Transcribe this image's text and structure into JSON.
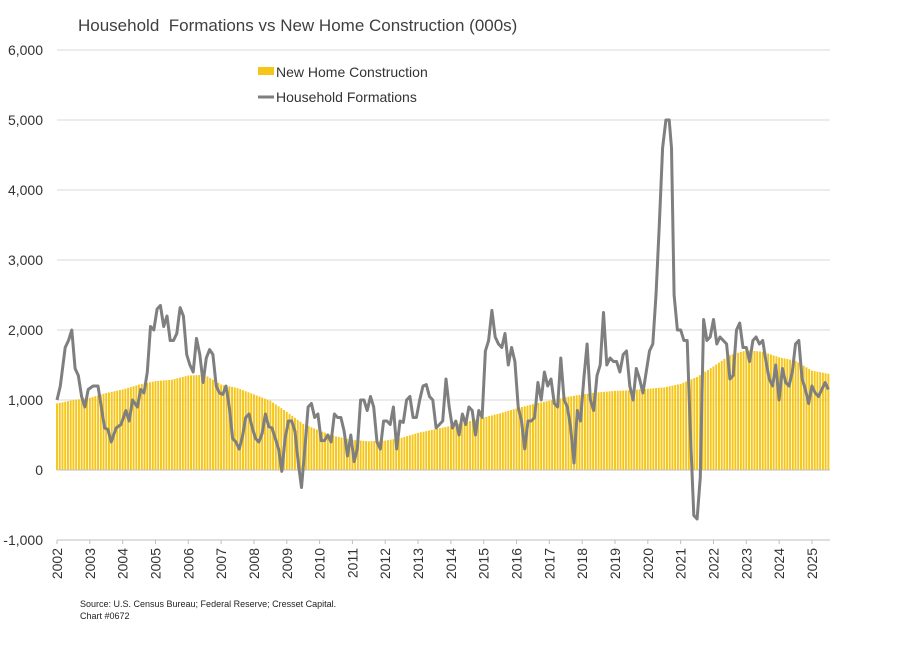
{
  "chart_data": {
    "type": "bar+line",
    "title": "Household  Formations vs New Home Construction (000s)",
    "ylim": [
      -1000,
      6000
    ],
    "y_ticks": [
      "-1,000",
      "0",
      "1,000",
      "2,000",
      "3,000",
      "4,000",
      "5,000",
      "6,000"
    ],
    "y_tick_values": [
      -1000,
      0,
      1000,
      2000,
      3000,
      4000,
      5000,
      6000
    ],
    "x_ticks": [
      "2002",
      "2003",
      "2004",
      "2005",
      "2006",
      "2007",
      "2008",
      "2009",
      "2010",
      "2011",
      "2012",
      "2013",
      "2014",
      "2015",
      "2016",
      "2017",
      "2018",
      "2019",
      "2020",
      "2021",
      "2022",
      "2023",
      "2024",
      "2025"
    ],
    "x_range": [
      2002.0,
      2025.55
    ],
    "grid": "horizontal",
    "legend_position": "top-left",
    "series": [
      {
        "name": "New Home Construction",
        "type": "bar",
        "color": "#F5C518",
        "points": [
          [
            2002.0,
            950
          ],
          [
            2002.5,
            1000
          ],
          [
            2003.0,
            1030
          ],
          [
            2003.5,
            1100
          ],
          [
            2004.0,
            1150
          ],
          [
            2004.5,
            1220
          ],
          [
            2005.0,
            1270
          ],
          [
            2005.5,
            1290
          ],
          [
            2006.0,
            1350
          ],
          [
            2006.5,
            1360
          ],
          [
            2007.0,
            1220
          ],
          [
            2007.5,
            1170
          ],
          [
            2008.0,
            1080
          ],
          [
            2008.5,
            990
          ],
          [
            2009.0,
            830
          ],
          [
            2009.5,
            660
          ],
          [
            2010.0,
            560
          ],
          [
            2010.5,
            480
          ],
          [
            2011.0,
            430
          ],
          [
            2011.5,
            410
          ],
          [
            2012.0,
            420
          ],
          [
            2012.5,
            460
          ],
          [
            2013.0,
            530
          ],
          [
            2013.5,
            580
          ],
          [
            2014.0,
            630
          ],
          [
            2014.5,
            690
          ],
          [
            2015.0,
            750
          ],
          [
            2015.5,
            810
          ],
          [
            2016.0,
            880
          ],
          [
            2016.5,
            940
          ],
          [
            2017.0,
            990
          ],
          [
            2017.5,
            1040
          ],
          [
            2018.0,
            1080
          ],
          [
            2018.5,
            1110
          ],
          [
            2019.0,
            1130
          ],
          [
            2019.5,
            1140
          ],
          [
            2020.0,
            1160
          ],
          [
            2020.5,
            1180
          ],
          [
            2021.0,
            1230
          ],
          [
            2021.5,
            1330
          ],
          [
            2022.0,
            1480
          ],
          [
            2022.5,
            1640
          ],
          [
            2023.0,
            1710
          ],
          [
            2023.5,
            1690
          ],
          [
            2024.0,
            1610
          ],
          [
            2024.5,
            1560
          ],
          [
            2025.0,
            1420
          ],
          [
            2025.55,
            1370
          ]
        ]
      },
      {
        "name": "Household Formations",
        "type": "line",
        "color": "#7F7F7F",
        "points": [
          [
            2002.0,
            1000
          ],
          [
            2002.1,
            1200
          ],
          [
            2002.25,
            1750
          ],
          [
            2002.35,
            1850
          ],
          [
            2002.45,
            2000
          ],
          [
            2002.55,
            1450
          ],
          [
            2002.65,
            1350
          ],
          [
            2002.75,
            1050
          ],
          [
            2002.85,
            900
          ],
          [
            2002.95,
            1150
          ],
          [
            2003.1,
            1200
          ],
          [
            2003.25,
            1200
          ],
          [
            2003.35,
            900
          ],
          [
            2003.45,
            600
          ],
          [
            2003.55,
            580
          ],
          [
            2003.65,
            400
          ],
          [
            2003.8,
            600
          ],
          [
            2003.95,
            650
          ],
          [
            2004.1,
            850
          ],
          [
            2004.2,
            700
          ],
          [
            2004.3,
            1000
          ],
          [
            2004.45,
            900
          ],
          [
            2004.55,
            1150
          ],
          [
            2004.65,
            1100
          ],
          [
            2004.75,
            1400
          ],
          [
            2004.85,
            2050
          ],
          [
            2004.95,
            2000
          ],
          [
            2005.05,
            2300
          ],
          [
            2005.15,
            2350
          ],
          [
            2005.25,
            2050
          ],
          [
            2005.35,
            2200
          ],
          [
            2005.45,
            1850
          ],
          [
            2005.55,
            1850
          ],
          [
            2005.65,
            1950
          ],
          [
            2005.75,
            2320
          ],
          [
            2005.85,
            2200
          ],
          [
            2005.95,
            1650
          ],
          [
            2006.05,
            1500
          ],
          [
            2006.15,
            1400
          ],
          [
            2006.25,
            1880
          ],
          [
            2006.35,
            1650
          ],
          [
            2006.45,
            1250
          ],
          [
            2006.55,
            1600
          ],
          [
            2006.65,
            1720
          ],
          [
            2006.75,
            1650
          ],
          [
            2006.85,
            1200
          ],
          [
            2006.95,
            1100
          ],
          [
            2007.05,
            1080
          ],
          [
            2007.15,
            1200
          ],
          [
            2007.25,
            900
          ],
          [
            2007.35,
            450
          ],
          [
            2007.45,
            400
          ],
          [
            2007.55,
            300
          ],
          [
            2007.65,
            480
          ],
          [
            2007.75,
            750
          ],
          [
            2007.85,
            800
          ],
          [
            2007.95,
            600
          ],
          [
            2008.05,
            450
          ],
          [
            2008.15,
            400
          ],
          [
            2008.25,
            520
          ],
          [
            2008.35,
            800
          ],
          [
            2008.45,
            620
          ],
          [
            2008.55,
            600
          ],
          [
            2008.65,
            450
          ],
          [
            2008.75,
            300
          ],
          [
            2008.85,
            -20
          ],
          [
            2008.95,
            450
          ],
          [
            2009.05,
            700
          ],
          [
            2009.15,
            700
          ],
          [
            2009.25,
            550
          ],
          [
            2009.35,
            100
          ],
          [
            2009.45,
            -250
          ],
          [
            2009.55,
            300
          ],
          [
            2009.65,
            900
          ],
          [
            2009.75,
            950
          ],
          [
            2009.85,
            750
          ],
          [
            2009.95,
            800
          ],
          [
            2010.05,
            420
          ],
          [
            2010.15,
            420
          ],
          [
            2010.25,
            500
          ],
          [
            2010.35,
            400
          ],
          [
            2010.45,
            800
          ],
          [
            2010.55,
            750
          ],
          [
            2010.65,
            750
          ],
          [
            2010.75,
            550
          ],
          [
            2010.85,
            200
          ],
          [
            2010.95,
            500
          ],
          [
            2011.05,
            120
          ],
          [
            2011.15,
            300
          ],
          [
            2011.25,
            1000
          ],
          [
            2011.35,
            1000
          ],
          [
            2011.45,
            850
          ],
          [
            2011.55,
            1050
          ],
          [
            2011.65,
            900
          ],
          [
            2011.75,
            400
          ],
          [
            2011.85,
            300
          ],
          [
            2011.95,
            700
          ],
          [
            2012.05,
            700
          ],
          [
            2012.15,
            650
          ],
          [
            2012.25,
            900
          ],
          [
            2012.35,
            300
          ],
          [
            2012.45,
            700
          ],
          [
            2012.55,
            680
          ],
          [
            2012.65,
            1000
          ],
          [
            2012.75,
            1050
          ],
          [
            2012.85,
            750
          ],
          [
            2012.95,
            750
          ],
          [
            2013.05,
            1000
          ],
          [
            2013.15,
            1200
          ],
          [
            2013.25,
            1220
          ],
          [
            2013.35,
            1050
          ],
          [
            2013.45,
            1000
          ],
          [
            2013.55,
            600
          ],
          [
            2013.65,
            650
          ],
          [
            2013.75,
            700
          ],
          [
            2013.85,
            1300
          ],
          [
            2013.95,
            900
          ],
          [
            2014.05,
            600
          ],
          [
            2014.15,
            700
          ],
          [
            2014.25,
            500
          ],
          [
            2014.35,
            800
          ],
          [
            2014.45,
            650
          ],
          [
            2014.55,
            900
          ],
          [
            2014.65,
            850
          ],
          [
            2014.75,
            500
          ],
          [
            2014.85,
            850
          ],
          [
            2014.95,
            750
          ],
          [
            2015.05,
            1700
          ],
          [
            2015.15,
            1850
          ],
          [
            2015.25,
            2280
          ],
          [
            2015.35,
            1900
          ],
          [
            2015.45,
            1800
          ],
          [
            2015.55,
            1750
          ],
          [
            2015.65,
            1950
          ],
          [
            2015.75,
            1500
          ],
          [
            2015.85,
            1750
          ],
          [
            2015.95,
            1550
          ],
          [
            2016.05,
            900
          ],
          [
            2016.15,
            700
          ],
          [
            2016.25,
            300
          ],
          [
            2016.35,
            700
          ],
          [
            2016.45,
            700
          ],
          [
            2016.55,
            750
          ],
          [
            2016.65,
            1250
          ],
          [
            2016.75,
            1000
          ],
          [
            2016.85,
            1400
          ],
          [
            2016.95,
            1200
          ],
          [
            2017.05,
            1300
          ],
          [
            2017.15,
            950
          ],
          [
            2017.25,
            900
          ],
          [
            2017.35,
            1600
          ],
          [
            2017.45,
            1000
          ],
          [
            2017.55,
            900
          ],
          [
            2017.65,
            600
          ],
          [
            2017.75,
            100
          ],
          [
            2017.85,
            850
          ],
          [
            2017.95,
            700
          ],
          [
            2018.05,
            1300
          ],
          [
            2018.15,
            1800
          ],
          [
            2018.25,
            1000
          ],
          [
            2018.35,
            850
          ],
          [
            2018.45,
            1350
          ],
          [
            2018.55,
            1500
          ],
          [
            2018.65,
            2250
          ],
          [
            2018.75,
            1500
          ],
          [
            2018.85,
            1600
          ],
          [
            2018.95,
            1550
          ],
          [
            2019.05,
            1550
          ],
          [
            2019.15,
            1400
          ],
          [
            2019.25,
            1650
          ],
          [
            2019.35,
            1700
          ],
          [
            2019.45,
            1200
          ],
          [
            2019.55,
            1000
          ],
          [
            2019.65,
            1450
          ],
          [
            2019.75,
            1300
          ],
          [
            2019.85,
            1100
          ],
          [
            2019.95,
            1400
          ],
          [
            2020.05,
            1700
          ],
          [
            2020.15,
            1800
          ],
          [
            2020.25,
            2500
          ],
          [
            2020.35,
            3500
          ],
          [
            2020.45,
            4600
          ],
          [
            2020.55,
            5000
          ],
          [
            2020.65,
            5000
          ],
          [
            2020.72,
            4600
          ],
          [
            2020.8,
            2500
          ],
          [
            2020.9,
            2000
          ],
          [
            2021.0,
            2000
          ],
          [
            2021.1,
            1850
          ],
          [
            2021.2,
            1850
          ],
          [
            2021.3,
            500
          ],
          [
            2021.4,
            -650
          ],
          [
            2021.5,
            -700
          ],
          [
            2021.6,
            -100
          ],
          [
            2021.7,
            2150
          ],
          [
            2021.8,
            1850
          ],
          [
            2021.9,
            1900
          ],
          [
            2022.0,
            2150
          ],
          [
            2022.1,
            1800
          ],
          [
            2022.2,
            1900
          ],
          [
            2022.3,
            1850
          ],
          [
            2022.4,
            1800
          ],
          [
            2022.5,
            1300
          ],
          [
            2022.6,
            1350
          ],
          [
            2022.7,
            2000
          ],
          [
            2022.8,
            2100
          ],
          [
            2022.9,
            1750
          ],
          [
            2023.0,
            1750
          ],
          [
            2023.1,
            1550
          ],
          [
            2023.2,
            1850
          ],
          [
            2023.3,
            1900
          ],
          [
            2023.4,
            1800
          ],
          [
            2023.5,
            1850
          ],
          [
            2023.6,
            1550
          ],
          [
            2023.7,
            1300
          ],
          [
            2023.8,
            1200
          ],
          [
            2023.9,
            1500
          ],
          [
            2024.0,
            1000
          ],
          [
            2024.1,
            1450
          ],
          [
            2024.2,
            1250
          ],
          [
            2024.3,
            1200
          ],
          [
            2024.4,
            1400
          ],
          [
            2024.5,
            1800
          ],
          [
            2024.6,
            1850
          ],
          [
            2024.7,
            1300
          ],
          [
            2024.8,
            1150
          ],
          [
            2024.9,
            950
          ],
          [
            2025.0,
            1200
          ],
          [
            2025.1,
            1100
          ],
          [
            2025.2,
            1050
          ],
          [
            2025.3,
            1150
          ],
          [
            2025.4,
            1250
          ],
          [
            2025.5,
            1150
          ]
        ]
      }
    ],
    "source": "Source: U.S. Census Bureau; Federal Reserve; Cresset Capital.",
    "chart_id": "Chart #0672"
  }
}
